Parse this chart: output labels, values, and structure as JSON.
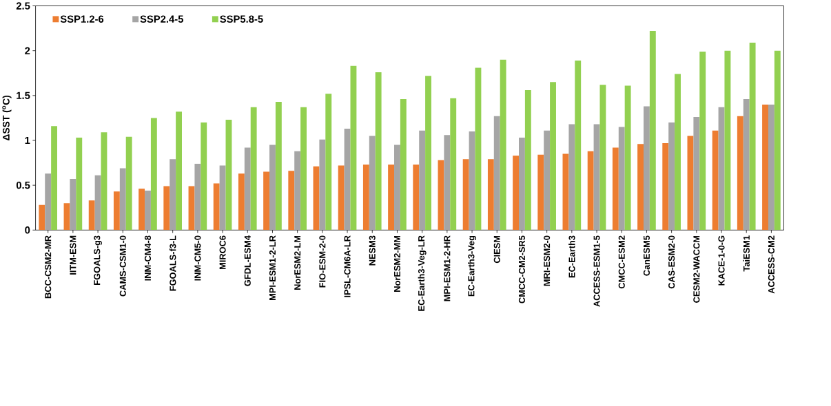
{
  "chart_data": {
    "type": "bar",
    "ylabel": "ΔSST ($^{o}$C)",
    "categories": [
      "BCC-CSM2-MR",
      "IITM-ESM",
      "FGOALS-g3",
      "CAMS-CSM1-0",
      "INM-CM4-8",
      "FGOALS-f3-L",
      "INM-CM5-0",
      "MIROC6",
      "GFDL-ESM4",
      "MPI-ESM1-2-LR",
      "NorESM2-LM",
      "FIO-ESM-2-0",
      "IPSL-CM6A-LR",
      "NESM3",
      "NorESM2-MM",
      "EC-Earth3-Veg-LR",
      "MPI-ESM1-2-HR",
      "EC-Earth3-Veg",
      "CIESM",
      "CMCC-CM2-SR5",
      "MRI-ESM2-0",
      "EC-Earth3",
      "ACCESS-ESM1-5",
      "CMCC-ESM2",
      "CanESM5",
      "CAS-ESM2-0",
      "CESM2-WACCM",
      "KACE-1-0-G",
      "TaiESM1",
      "ACCESS-CM2"
    ],
    "series": [
      {
        "name": "SSP1.2-6",
        "color": "#ed7d31",
        "values": [
          0.28,
          0.3,
          0.33,
          0.43,
          0.46,
          0.49,
          0.49,
          0.52,
          0.63,
          0.65,
          0.66,
          0.71,
          0.72,
          0.73,
          0.73,
          0.73,
          0.78,
          0.79,
          0.79,
          0.83,
          0.84,
          0.85,
          0.88,
          0.92,
          0.96,
          0.97,
          1.05,
          1.11,
          1.27,
          1.4
        ]
      },
      {
        "name": "SSP2.4-5",
        "color": "#a5a5a5",
        "values": [
          0.63,
          0.57,
          0.61,
          0.69,
          0.44,
          0.79,
          0.74,
          0.72,
          0.92,
          0.95,
          0.88,
          1.01,
          1.13,
          1.05,
          0.95,
          1.11,
          1.06,
          1.1,
          1.27,
          1.03,
          1.11,
          1.18,
          1.18,
          1.15,
          1.38,
          1.2,
          1.26,
          1.37,
          1.46,
          1.4
        ]
      },
      {
        "name": "SSP5.8-5",
        "color": "#92d050",
        "values": [
          1.16,
          1.03,
          1.09,
          1.04,
          1.25,
          1.32,
          1.2,
          1.23,
          1.37,
          1.43,
          1.37,
          1.52,
          1.83,
          1.76,
          1.46,
          1.72,
          1.47,
          1.81,
          1.9,
          1.56,
          1.65,
          1.89,
          1.62,
          1.61,
          2.22,
          1.74,
          1.99,
          2.0,
          2.09,
          2.0
        ]
      }
    ],
    "ylim": [
      0,
      2.5
    ],
    "yticks": [
      0,
      0.5,
      1,
      1.5,
      2,
      2.5
    ],
    "grid": false,
    "legend": "top left"
  }
}
